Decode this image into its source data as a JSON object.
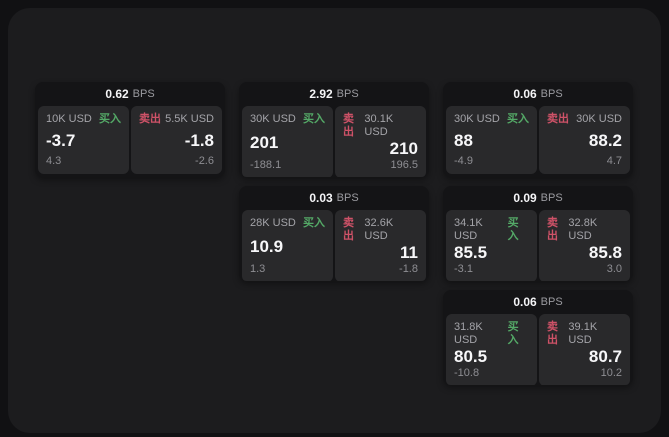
{
  "labels": {
    "bps": "BPS",
    "buy": "买入",
    "sell": "卖出"
  },
  "colors": {
    "buy_green": "#54a967",
    "sell_red": "#cf5268",
    "surface": "#1c1c1e",
    "card_background": "#141416",
    "panel_background": "#29292b"
  },
  "cards": [
    {
      "bps": "0.62",
      "buy": {
        "amount": "10K USD",
        "price": "-3.7",
        "delta": "4.3"
      },
      "sell": {
        "amount": "5.5K USD",
        "price": "-1.8",
        "delta": "-2.6"
      }
    },
    {
      "bps": "2.92",
      "buy": {
        "amount": "30K USD",
        "price": "201",
        "delta": "-188.1"
      },
      "sell": {
        "amount": "30.1K USD",
        "price": "210",
        "delta": "196.5"
      }
    },
    {
      "bps": "0.06",
      "buy": {
        "amount": "30K USD",
        "price": "88",
        "delta": "-4.9"
      },
      "sell": {
        "amount": "30K USD",
        "price": "88.2",
        "delta": "4.7"
      }
    },
    {
      "bps": "0.03",
      "buy": {
        "amount": "28K USD",
        "price": "10.9",
        "delta": "1.3"
      },
      "sell": {
        "amount": "32.6K USD",
        "price": "11",
        "delta": "-1.8"
      }
    },
    {
      "bps": "0.09",
      "buy": {
        "amount": "34.1K USD",
        "price": "85.5",
        "delta": "-3.1"
      },
      "sell": {
        "amount": "32.8K USD",
        "price": "85.8",
        "delta": "3.0"
      }
    },
    {
      "bps": "0.06",
      "buy": {
        "amount": "31.8K USD",
        "price": "80.5",
        "delta": "-10.8"
      },
      "sell": {
        "amount": "39.1K USD",
        "price": "80.7",
        "delta": "10.2"
      }
    }
  ]
}
